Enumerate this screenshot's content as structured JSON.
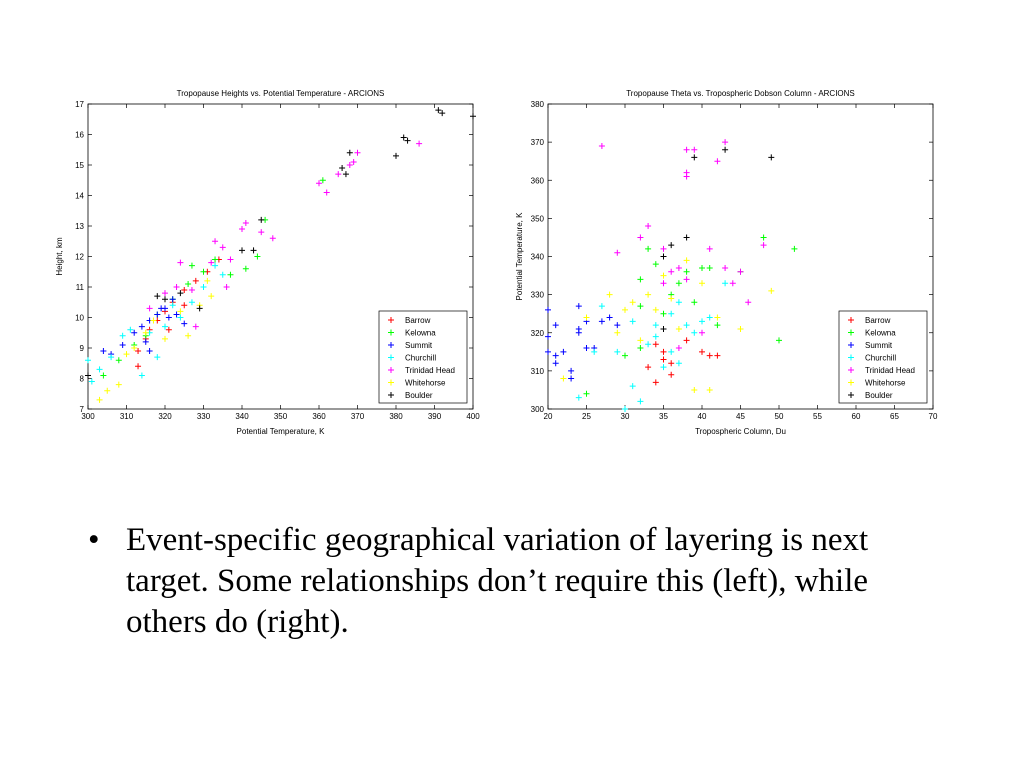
{
  "bullet": {
    "symbol": "•",
    "text": "Event-specific geographical variation of layering is next target. Some relationships don’t require this (left), while others do (right)."
  },
  "chart_data": [
    {
      "type": "scatter",
      "title": "Tropopause Heights vs. Potential Temperature - ARCIONS",
      "xlabel": "Potential Temperature, K",
      "ylabel": "Height, km",
      "xlim": [
        300,
        400
      ],
      "ylim": [
        7,
        17
      ],
      "xticks": [
        300,
        310,
        320,
        330,
        340,
        350,
        360,
        370,
        380,
        390,
        400
      ],
      "yticks": [
        7,
        8,
        9,
        10,
        11,
        12,
        13,
        14,
        15,
        16,
        17
      ],
      "grid": false,
      "legend_position": "bottom-right",
      "series": [
        {
          "name": "Barrow",
          "color": "#ff0000",
          "points": [
            [
              313,
              8.4
            ],
            [
              313,
              8.9
            ],
            [
              315,
              9.3
            ],
            [
              316,
              9.6
            ],
            [
              318,
              9.9
            ],
            [
              320,
              10.2
            ],
            [
              322,
              10.5
            ],
            [
              325,
              10.9
            ],
            [
              328,
              11.2
            ],
            [
              331,
              11.5
            ],
            [
              334,
              11.9
            ],
            [
              325,
              10.4
            ],
            [
              321,
              9.6
            ]
          ]
        },
        {
          "name": "Kelowna",
          "color": "#00ff00",
          "points": [
            [
              304,
              8.1
            ],
            [
              308,
              8.6
            ],
            [
              312,
              9.1
            ],
            [
              315,
              9.4
            ],
            [
              318,
              10.1
            ],
            [
              322,
              10.6
            ],
            [
              326,
              11.1
            ],
            [
              330,
              11.5
            ],
            [
              333,
              11.9
            ],
            [
              337,
              11.4
            ],
            [
              341,
              11.6
            ],
            [
              344,
              12.0
            ],
            [
              346,
              13.2
            ],
            [
              361,
              14.5
            ],
            [
              327,
              11.7
            ]
          ]
        },
        {
          "name": "Summit",
          "color": "#0000ff",
          "points": [
            [
              304,
              8.9
            ],
            [
              306,
              8.8
            ],
            [
              309,
              9.1
            ],
            [
              312,
              9.5
            ],
            [
              314,
              9.7
            ],
            [
              315,
              9.2
            ],
            [
              316,
              9.9
            ],
            [
              318,
              10.1
            ],
            [
              320,
              10.3
            ],
            [
              321,
              10.0
            ],
            [
              322,
              10.6
            ],
            [
              323,
              10.1
            ],
            [
              325,
              9.8
            ],
            [
              316,
              8.9
            ],
            [
              319,
              10.3
            ]
          ]
        },
        {
          "name": "Churchill",
          "color": "#00ffff",
          "points": [
            [
              300,
              8.6
            ],
            [
              301,
              7.9
            ],
            [
              303,
              8.3
            ],
            [
              306,
              8.7
            ],
            [
              309,
              9.4
            ],
            [
              311,
              9.6
            ],
            [
              314,
              8.1
            ],
            [
              316,
              9.5
            ],
            [
              318,
              8.7
            ],
            [
              320,
              9.7
            ],
            [
              322,
              10.4
            ],
            [
              324,
              10.0
            ],
            [
              327,
              10.5
            ],
            [
              330,
              11.0
            ],
            [
              335,
              11.4
            ],
            [
              333,
              11.7
            ]
          ]
        },
        {
          "name": "Trinidad Head",
          "color": "#ff00ff",
          "points": [
            [
              316,
              10.3
            ],
            [
              320,
              10.8
            ],
            [
              323,
              11.0
            ],
            [
              324,
              11.8
            ],
            [
              327,
              10.9
            ],
            [
              328,
              9.7
            ],
            [
              332,
              11.8
            ],
            [
              333,
              12.5
            ],
            [
              335,
              12.3
            ],
            [
              336,
              11.0
            ],
            [
              340,
              12.9
            ],
            [
              341,
              13.1
            ],
            [
              345,
              12.8
            ],
            [
              348,
              12.6
            ],
            [
              360,
              14.4
            ],
            [
              362,
              14.1
            ],
            [
              365,
              14.7
            ],
            [
              368,
              15.0
            ],
            [
              370,
              15.4
            ],
            [
              369,
              15.1
            ],
            [
              386,
              15.7
            ],
            [
              337,
              11.9
            ]
          ]
        },
        {
          "name": "Whitehorse",
          "color": "#ffff00",
          "points": [
            [
              303,
              7.3
            ],
            [
              305,
              7.6
            ],
            [
              308,
              7.8
            ],
            [
              310,
              8.8
            ],
            [
              312,
              9.0
            ],
            [
              315,
              9.5
            ],
            [
              317,
              9.9
            ],
            [
              320,
              9.3
            ],
            [
              324,
              10.2
            ],
            [
              326,
              9.4
            ],
            [
              329,
              10.4
            ],
            [
              331,
              11.2
            ],
            [
              332,
              10.7
            ]
          ]
        },
        {
          "name": "Boulder",
          "color": "#000000",
          "points": [
            [
              300,
              8.1
            ],
            [
              318,
              10.7
            ],
            [
              320,
              10.6
            ],
            [
              324,
              10.8
            ],
            [
              329,
              10.3
            ],
            [
              340,
              12.2
            ],
            [
              343,
              12.2
            ],
            [
              345,
              13.2
            ],
            [
              366,
              14.9
            ],
            [
              367,
              14.7
            ],
            [
              368,
              15.4
            ],
            [
              380,
              15.3
            ],
            [
              382,
              15.9
            ],
            [
              383,
              15.8
            ],
            [
              391,
              16.8
            ],
            [
              392,
              16.7
            ],
            [
              400,
              16.6
            ]
          ]
        }
      ]
    },
    {
      "type": "scatter",
      "title": "Tropopause Theta vs. Tropospheric Dobson Column - ARCIONS",
      "xlabel": "Tropospheric Column, Du",
      "ylabel": "Potential Temperature, K",
      "xlim": [
        20,
        70
      ],
      "ylim": [
        300,
        380
      ],
      "xticks": [
        20,
        25,
        30,
        35,
        40,
        45,
        50,
        55,
        60,
        65,
        70
      ],
      "yticks": [
        300,
        310,
        320,
        330,
        340,
        350,
        360,
        370,
        380
      ],
      "grid": false,
      "legend_position": "bottom-right",
      "series": [
        {
          "name": "Barrow",
          "color": "#ff0000",
          "points": [
            [
              33,
              311
            ],
            [
              34,
              307
            ],
            [
              35,
              313
            ],
            [
              36,
              312
            ],
            [
              35,
              315
            ],
            [
              38,
              318
            ],
            [
              40,
              315
            ],
            [
              41,
              314
            ],
            [
              42,
              314
            ],
            [
              34,
              317
            ],
            [
              36,
              309
            ]
          ]
        },
        {
          "name": "Kelowna",
          "color": "#00ff00",
          "points": [
            [
              25,
              304
            ],
            [
              30,
              314
            ],
            [
              32,
              327
            ],
            [
              32,
              334
            ],
            [
              33,
              342
            ],
            [
              34,
              338
            ],
            [
              36,
              330
            ],
            [
              37,
              333
            ],
            [
              38,
              336
            ],
            [
              39,
              328
            ],
            [
              40,
              337
            ],
            [
              41,
              337
            ],
            [
              42,
              322
            ],
            [
              45,
              336
            ],
            [
              48,
              345
            ],
            [
              50,
              318
            ],
            [
              52,
              342
            ],
            [
              32,
              316
            ],
            [
              35,
              325
            ]
          ]
        },
        {
          "name": "Summit",
          "color": "#0000ff",
          "points": [
            [
              20,
              326
            ],
            [
              20,
              315
            ],
            [
              21,
              322
            ],
            [
              21,
              312
            ],
            [
              22,
              315
            ],
            [
              23,
              308
            ],
            [
              23,
              310
            ],
            [
              24,
              327
            ],
            [
              24,
              321
            ],
            [
              25,
              323
            ],
            [
              25,
              316
            ],
            [
              26,
              316
            ],
            [
              27,
              323
            ],
            [
              28,
              324
            ],
            [
              29,
              322
            ],
            [
              20,
              319
            ],
            [
              21,
              314
            ],
            [
              24,
              320
            ]
          ]
        },
        {
          "name": "Churchill",
          "color": "#00ffff",
          "points": [
            [
              24,
              303
            ],
            [
              26,
              315
            ],
            [
              27,
              327
            ],
            [
              29,
              315
            ],
            [
              30,
              300
            ],
            [
              31,
              306
            ],
            [
              31,
              323
            ],
            [
              32,
              302
            ],
            [
              33,
              317
            ],
            [
              34,
              319
            ],
            [
              35,
              311
            ],
            [
              36,
              315
            ],
            [
              37,
              312
            ],
            [
              37,
              328
            ],
            [
              38,
              322
            ],
            [
              39,
              320
            ],
            [
              40,
              323
            ],
            [
              41,
              324
            ],
            [
              43,
              333
            ],
            [
              36,
              325
            ],
            [
              34,
              322
            ]
          ]
        },
        {
          "name": "Trinidad Head",
          "color": "#ff00ff",
          "points": [
            [
              27,
              369
            ],
            [
              29,
              341
            ],
            [
              32,
              345
            ],
            [
              33,
              348
            ],
            [
              35,
              333
            ],
            [
              35,
              342
            ],
            [
              36,
              336
            ],
            [
              37,
              337
            ],
            [
              38,
              361
            ],
            [
              38,
              362
            ],
            [
              38,
              368
            ],
            [
              39,
              368
            ],
            [
              40,
              320
            ],
            [
              41,
              342
            ],
            [
              42,
              365
            ],
            [
              43,
              370
            ],
            [
              43,
              337
            ],
            [
              44,
              333
            ],
            [
              45,
              336
            ],
            [
              46,
              328
            ],
            [
              48,
              343
            ],
            [
              38,
              334
            ],
            [
              37,
              316
            ]
          ]
        },
        {
          "name": "Whitehorse",
          "color": "#ffff00",
          "points": [
            [
              22,
              308
            ],
            [
              25,
              324
            ],
            [
              28,
              330
            ],
            [
              29,
              320
            ],
            [
              30,
              326
            ],
            [
              31,
              328
            ],
            [
              32,
              318
            ],
            [
              33,
              330
            ],
            [
              34,
              326
            ],
            [
              35,
              335
            ],
            [
              36,
              329
            ],
            [
              37,
              321
            ],
            [
              38,
              339
            ],
            [
              39,
              305
            ],
            [
              40,
              333
            ],
            [
              41,
              305
            ],
            [
              42,
              324
            ],
            [
              45,
              321
            ],
            [
              49,
              331
            ]
          ]
        },
        {
          "name": "Boulder",
          "color": "#000000",
          "points": [
            [
              35,
              340
            ],
            [
              36,
              343
            ],
            [
              38,
              345
            ],
            [
              39,
              366
            ],
            [
              43,
              368
            ],
            [
              49,
              366
            ],
            [
              35,
              321
            ]
          ]
        }
      ]
    }
  ]
}
